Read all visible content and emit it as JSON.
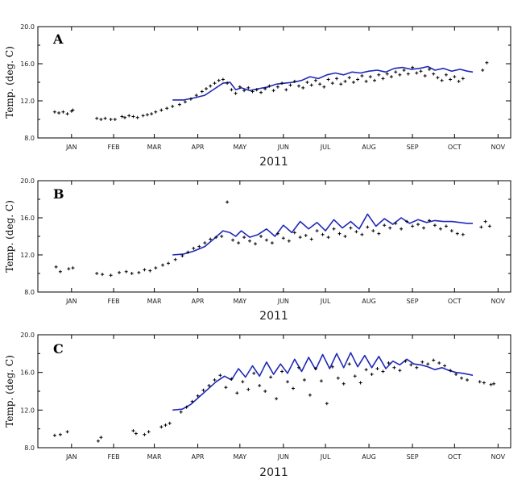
{
  "chart_data": [
    {
      "type": "line",
      "panel_label": "A",
      "ylabel": "Temp. (deg. C)",
      "xlabel": "2011",
      "ylim": [
        8.0,
        20.0
      ],
      "ytick_labels": [
        "8.0",
        "12.0",
        "16.0",
        "20.0"
      ],
      "x_tick_labels": [
        "JAN",
        "FEB",
        "MAR",
        "APR",
        "MAY",
        "JUN",
        "JUL",
        "AUG",
        "SEP",
        "OCT",
        "NOV"
      ],
      "series": [
        {
          "kind": "line",
          "color": "#1f28b8",
          "x": [
            "2011-03-28",
            "2011-04-05",
            "2011-04-12",
            "2011-04-20",
            "2011-04-27",
            "2011-05-03",
            "2011-05-08",
            "2011-05-12",
            "2011-05-16",
            "2011-05-22",
            "2011-05-28",
            "2011-06-04",
            "2011-06-10",
            "2011-06-16",
            "2011-06-22",
            "2011-06-28",
            "2011-07-04",
            "2011-07-10",
            "2011-07-16",
            "2011-07-22",
            "2011-07-28",
            "2011-08-03",
            "2011-08-09",
            "2011-08-15",
            "2011-08-21",
            "2011-08-27",
            "2011-09-02",
            "2011-09-08",
            "2011-09-14",
            "2011-09-20",
            "2011-09-26",
            "2011-10-01",
            "2011-10-07",
            "2011-10-13",
            "2011-10-19",
            "2011-10-24",
            "2011-10-28"
          ],
          "y": [
            12.1,
            12.1,
            12.3,
            12.6,
            13.3,
            13.9,
            14.0,
            13.2,
            13.4,
            13.1,
            13.3,
            13.5,
            13.8,
            13.9,
            14.0,
            14.2,
            14.6,
            14.4,
            14.8,
            15.0,
            14.8,
            15.1,
            15.0,
            15.2,
            15.3,
            15.1,
            15.5,
            15.6,
            15.4,
            15.5,
            15.7,
            15.3,
            15.5,
            15.2,
            15.4,
            15.2,
            15.1
          ]
        },
        {
          "kind": "scatter",
          "color": "#000000",
          "x": [
            "2011-01-03",
            "2011-01-06",
            "2011-01-09",
            "2011-01-12",
            "2011-01-15",
            "2011-01-16",
            "2011-02-02",
            "2011-02-05",
            "2011-02-08",
            "2011-02-12",
            "2011-02-15",
            "2011-02-20",
            "2011-02-22",
            "2011-02-25",
            "2011-02-28",
            "2011-03-03",
            "2011-03-07",
            "2011-03-10",
            "2011-03-13",
            "2011-03-16",
            "2011-03-20",
            "2011-03-24",
            "2011-03-28",
            "2011-04-02",
            "2011-04-06",
            "2011-04-10",
            "2011-04-14",
            "2011-04-18",
            "2011-04-21",
            "2011-04-24",
            "2011-04-27",
            "2011-04-30",
            "2011-05-03",
            "2011-05-06",
            "2011-05-09",
            "2011-05-12",
            "2011-05-15",
            "2011-05-18",
            "2011-05-21",
            "2011-05-24",
            "2011-05-27",
            "2011-05-30",
            "2011-06-02",
            "2011-06-05",
            "2011-06-08",
            "2011-06-11",
            "2011-06-14",
            "2011-06-17",
            "2011-06-20",
            "2011-06-23",
            "2011-06-26",
            "2011-06-29",
            "2011-07-02",
            "2011-07-05",
            "2011-07-08",
            "2011-07-11",
            "2011-07-14",
            "2011-07-17",
            "2011-07-20",
            "2011-07-23",
            "2011-07-26",
            "2011-07-29",
            "2011-08-01",
            "2011-08-04",
            "2011-08-07",
            "2011-08-10",
            "2011-08-13",
            "2011-08-16",
            "2011-08-19",
            "2011-08-22",
            "2011-08-25",
            "2011-08-28",
            "2011-08-31",
            "2011-09-03",
            "2011-09-06",
            "2011-09-09",
            "2011-09-12",
            "2011-09-15",
            "2011-09-18",
            "2011-09-21",
            "2011-09-24",
            "2011-09-27",
            "2011-09-30",
            "2011-10-03",
            "2011-10-06",
            "2011-10-09",
            "2011-10-12",
            "2011-10-15",
            "2011-10-18",
            "2011-10-21",
            "2011-11-04",
            "2011-11-07"
          ],
          "y": [
            10.8,
            10.7,
            10.8,
            10.6,
            10.9,
            11.0,
            10.1,
            10.0,
            10.1,
            10.0,
            10.0,
            10.3,
            10.2,
            10.4,
            10.3,
            10.2,
            10.4,
            10.5,
            10.6,
            10.8,
            11.0,
            11.2,
            11.4,
            11.6,
            11.9,
            12.2,
            12.6,
            13.0,
            13.3,
            13.6,
            13.9,
            14.2,
            14.3,
            13.9,
            13.2,
            12.8,
            13.5,
            13.1,
            13.4,
            13.0,
            13.2,
            12.9,
            13.3,
            13.6,
            13.1,
            13.5,
            13.9,
            13.2,
            13.7,
            14.1,
            13.6,
            13.4,
            14.0,
            13.7,
            14.2,
            13.8,
            13.5,
            14.3,
            13.9,
            14.4,
            13.8,
            14.1,
            14.5,
            14.0,
            14.3,
            14.7,
            14.1,
            14.6,
            14.2,
            14.8,
            14.4,
            14.9,
            14.6,
            15.1,
            14.8,
            15.3,
            14.9,
            15.6,
            15.0,
            15.2,
            14.7,
            15.4,
            14.9,
            14.5,
            14.2,
            14.8,
            14.3,
            14.6,
            14.1,
            14.4,
            15.3,
            16.1
          ]
        }
      ]
    },
    {
      "type": "line",
      "panel_label": "B",
      "ylabel": "Temp. (deg. C)",
      "xlabel": "2011",
      "ylim": [
        8.0,
        20.0
      ],
      "ytick_labels": [
        "8.0",
        "12.0",
        "16.0",
        "20.0"
      ],
      "x_tick_labels": [
        "JAN",
        "FEB",
        "MAR",
        "APR",
        "MAY",
        "JUN",
        "JUL",
        "AUG",
        "SEP",
        "OCT",
        "NOV"
      ],
      "series": [
        {
          "kind": "line",
          "color": "#1f28b8",
          "x": [
            "2011-03-28",
            "2011-04-05",
            "2011-04-12",
            "2011-04-20",
            "2011-04-27",
            "2011-05-03",
            "2011-05-08",
            "2011-05-12",
            "2011-05-16",
            "2011-05-22",
            "2011-05-28",
            "2011-06-03",
            "2011-06-09",
            "2011-06-15",
            "2011-06-21",
            "2011-06-27",
            "2011-07-03",
            "2011-07-09",
            "2011-07-15",
            "2011-07-21",
            "2011-07-27",
            "2011-08-02",
            "2011-08-08",
            "2011-08-14",
            "2011-08-20",
            "2011-08-26",
            "2011-09-01",
            "2011-09-07",
            "2011-09-13",
            "2011-09-19",
            "2011-09-25",
            "2011-10-01",
            "2011-10-07",
            "2011-10-13",
            "2011-10-19",
            "2011-10-24",
            "2011-10-28"
          ],
          "y": [
            12.0,
            12.1,
            12.4,
            12.9,
            13.8,
            14.6,
            14.4,
            14.0,
            14.6,
            13.9,
            14.2,
            14.8,
            14.0,
            15.2,
            14.4,
            15.6,
            14.8,
            15.5,
            14.6,
            15.8,
            14.9,
            15.6,
            14.8,
            16.4,
            15.1,
            15.9,
            15.3,
            16.0,
            15.4,
            15.8,
            15.5,
            15.7,
            15.6,
            15.6,
            15.5,
            15.4,
            15.4
          ]
        },
        {
          "kind": "scatter",
          "color": "#000000",
          "x": [
            "2011-01-04",
            "2011-01-07",
            "2011-01-13",
            "2011-01-16",
            "2011-02-02",
            "2011-02-06",
            "2011-02-12",
            "2011-02-18",
            "2011-02-23",
            "2011-02-27",
            "2011-03-04",
            "2011-03-08",
            "2011-03-12",
            "2011-03-16",
            "2011-03-21",
            "2011-03-25",
            "2011-03-30",
            "2011-04-04",
            "2011-04-08",
            "2011-04-12",
            "2011-04-16",
            "2011-04-20",
            "2011-04-24",
            "2011-04-28",
            "2011-05-02",
            "2011-05-06",
            "2011-05-10",
            "2011-05-14",
            "2011-05-18",
            "2011-05-22",
            "2011-05-26",
            "2011-05-30",
            "2011-06-03",
            "2011-06-07",
            "2011-06-11",
            "2011-06-15",
            "2011-06-19",
            "2011-06-23",
            "2011-06-27",
            "2011-07-01",
            "2011-07-05",
            "2011-07-09",
            "2011-07-13",
            "2011-07-17",
            "2011-07-21",
            "2011-07-25",
            "2011-07-29",
            "2011-08-02",
            "2011-08-06",
            "2011-08-10",
            "2011-08-14",
            "2011-08-18",
            "2011-08-22",
            "2011-08-26",
            "2011-08-30",
            "2011-09-03",
            "2011-09-07",
            "2011-09-11",
            "2011-09-15",
            "2011-09-19",
            "2011-09-23",
            "2011-09-27",
            "2011-10-01",
            "2011-10-05",
            "2011-10-09",
            "2011-10-13",
            "2011-10-17",
            "2011-10-21",
            "2011-11-03",
            "2011-11-06",
            "2011-11-09"
          ],
          "y": [
            10.7,
            10.2,
            10.5,
            10.6,
            10.0,
            9.9,
            9.8,
            10.1,
            10.2,
            10.0,
            10.1,
            10.4,
            10.3,
            10.6,
            10.9,
            11.1,
            11.5,
            11.9,
            12.3,
            12.7,
            12.9,
            13.3,
            13.7,
            13.9,
            14.0,
            17.7,
            13.6,
            13.3,
            13.9,
            13.5,
            13.2,
            14.0,
            13.6,
            13.3,
            14.3,
            13.8,
            13.5,
            14.4,
            13.9,
            14.1,
            13.7,
            14.6,
            14.2,
            13.9,
            14.8,
            14.3,
            14.0,
            14.9,
            14.5,
            14.2,
            15.0,
            14.6,
            14.3,
            15.2,
            14.9,
            15.4,
            14.8,
            15.6,
            15.1,
            15.3,
            14.9,
            15.7,
            15.2,
            14.8,
            15.1,
            14.6,
            14.3,
            14.2,
            15.0,
            15.6,
            15.1
          ]
        }
      ]
    },
    {
      "type": "line",
      "panel_label": "C",
      "ylabel": "Temp. (deg. C)",
      "xlabel": "2011",
      "ylim": [
        8.0,
        20.0
      ],
      "ytick_labels": [
        "8.0",
        "12.0",
        "16.0",
        "20.0"
      ],
      "x_tick_labels": [
        "JAN",
        "FEB",
        "MAR",
        "APR",
        "MAY",
        "JUN",
        "JUL",
        "AUG",
        "SEP",
        "OCT",
        "NOV"
      ],
      "series": [
        {
          "kind": "line",
          "color": "#1f28b8",
          "x": [
            "2011-03-28",
            "2011-04-04",
            "2011-04-10",
            "2011-04-16",
            "2011-04-22",
            "2011-04-28",
            "2011-05-04",
            "2011-05-09",
            "2011-05-14",
            "2011-05-19",
            "2011-05-24",
            "2011-05-29",
            "2011-06-03",
            "2011-06-08",
            "2011-06-13",
            "2011-06-18",
            "2011-06-23",
            "2011-06-28",
            "2011-07-03",
            "2011-07-08",
            "2011-07-13",
            "2011-07-18",
            "2011-07-23",
            "2011-07-28",
            "2011-08-02",
            "2011-08-07",
            "2011-08-12",
            "2011-08-17",
            "2011-08-22",
            "2011-08-27",
            "2011-09-01",
            "2011-09-06",
            "2011-09-11",
            "2011-09-16",
            "2011-09-21",
            "2011-09-26",
            "2011-10-01",
            "2011-10-06",
            "2011-10-11",
            "2011-10-16",
            "2011-10-21",
            "2011-10-28"
          ],
          "y": [
            12.0,
            12.1,
            12.6,
            13.4,
            14.2,
            15.0,
            15.6,
            15.2,
            16.4,
            15.5,
            16.7,
            15.6,
            17.1,
            15.8,
            16.9,
            15.9,
            17.4,
            16.1,
            17.6,
            16.3,
            17.9,
            16.4,
            18.0,
            16.5,
            18.1,
            16.6,
            17.8,
            16.5,
            17.7,
            16.4,
            17.2,
            16.8,
            17.4,
            16.9,
            16.8,
            16.6,
            16.3,
            16.5,
            16.2,
            16.0,
            15.9,
            15.7
          ]
        },
        {
          "kind": "scatter",
          "color": "#000000",
          "x": [
            "2011-01-03",
            "2011-01-07",
            "2011-01-12",
            "2011-02-03",
            "2011-02-05",
            "2011-02-28",
            "2011-03-02",
            "2011-03-08",
            "2011-03-11",
            "2011-03-20",
            "2011-03-23",
            "2011-03-26",
            "2011-04-03",
            "2011-04-07",
            "2011-04-11",
            "2011-04-15",
            "2011-04-19",
            "2011-04-23",
            "2011-04-27",
            "2011-05-01",
            "2011-05-05",
            "2011-05-09",
            "2011-05-13",
            "2011-05-17",
            "2011-05-21",
            "2011-05-25",
            "2011-05-29",
            "2011-06-02",
            "2011-06-06",
            "2011-06-10",
            "2011-06-14",
            "2011-06-18",
            "2011-06-22",
            "2011-06-26",
            "2011-06-30",
            "2011-07-04",
            "2011-07-08",
            "2011-07-12",
            "2011-07-16",
            "2011-07-20",
            "2011-07-24",
            "2011-07-28",
            "2011-08-01",
            "2011-08-05",
            "2011-08-09",
            "2011-08-13",
            "2011-08-17",
            "2011-08-21",
            "2011-08-25",
            "2011-08-29",
            "2011-09-02",
            "2011-09-06",
            "2011-09-10",
            "2011-09-14",
            "2011-09-18",
            "2011-09-22",
            "2011-09-26",
            "2011-09-30",
            "2011-10-04",
            "2011-10-08",
            "2011-10-12",
            "2011-10-16",
            "2011-10-20",
            "2011-10-24",
            "2011-11-02",
            "2011-11-05",
            "2011-11-10",
            "2011-11-12"
          ],
          "y": [
            9.3,
            9.4,
            9.7,
            8.7,
            9.1,
            9.8,
            9.5,
            9.4,
            9.7,
            10.2,
            10.4,
            10.6,
            11.8,
            12.3,
            12.9,
            13.5,
            14.1,
            14.6,
            15.2,
            15.7,
            14.4,
            15.3,
            13.8,
            15.0,
            14.2,
            15.9,
            14.6,
            14.0,
            15.5,
            13.2,
            16.1,
            15.0,
            14.3,
            16.5,
            15.2,
            13.6,
            16.4,
            15.1,
            12.7,
            16.6,
            15.4,
            14.8,
            16.9,
            15.6,
            14.9,
            16.3,
            15.8,
            16.4,
            16.1,
            17.0,
            16.5,
            16.2,
            17.2,
            16.8,
            16.5,
            17.1,
            16.9,
            17.3,
            17.0,
            16.7,
            16.2,
            15.8,
            15.4,
            15.2,
            15.0,
            14.9,
            14.7,
            14.8
          ]
        }
      ]
    }
  ]
}
